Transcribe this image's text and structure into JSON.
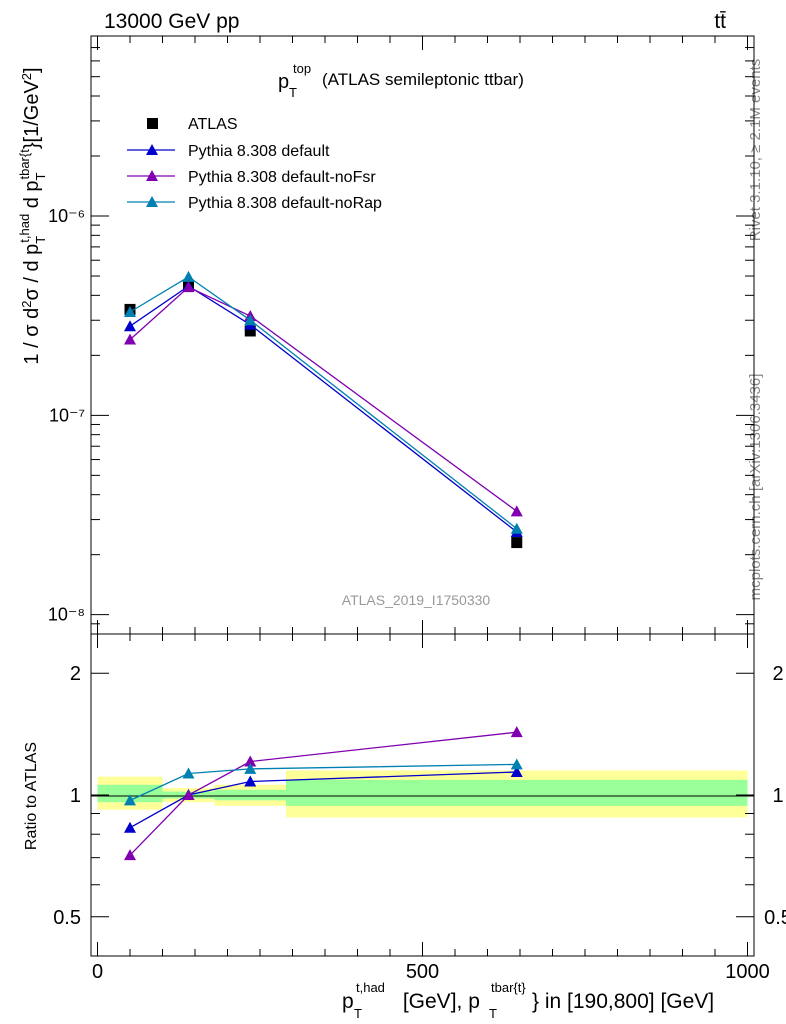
{
  "header": {
    "energy_label": "13000 GeV pp",
    "process_label": "tt̄"
  },
  "side": {
    "rivet_label": "Rivet 3.1.10, ≥ 2.1M events",
    "site_label": "mcplots.cern.ch [arXiv:1306.3436]"
  },
  "colors": {
    "atlas": "#000000",
    "default": "#0000cc",
    "noFsr": "#8000b0",
    "noRap": "#0080b0",
    "band_inner": "#99ff99",
    "band_outer": "#ffff99"
  },
  "chart_data": [
    {
      "type": "line",
      "panel": "main",
      "title": "(ATLAS semileptonic ttbar)",
      "title_var": "p",
      "title_var_sub": "T",
      "title_var_sup": "top",
      "ylabel": "1 / σ d²σ / d p_T^{t,had} d p_T^{tbar{t}} [1/GeV²]",
      "y_scale": "log",
      "ylim": [
        8e-09,
        8e-06
      ],
      "xlim": [
        -10,
        1010
      ],
      "analysis_label": "ATLAS_2019_I1750330",
      "ytick_labels": [
        "10⁻⁸",
        "10⁻⁷",
        "10⁻⁶"
      ],
      "ytick_values": [
        1e-08,
        1e-07,
        1e-06
      ],
      "legend_position": "top-left",
      "x": [
        50,
        140,
        235,
        645
      ],
      "series": [
        {
          "name": "ATLAS",
          "marker": "square",
          "values": [
            3.4e-07,
            4.5e-07,
            2.65e-07,
            2.3e-08
          ]
        },
        {
          "name": "Pythia 8.308 default",
          "marker": "triangle",
          "values": [
            2.8e-07,
            4.45e-07,
            2.85e-07,
            2.6e-08
          ]
        },
        {
          "name": "Pythia 8.308 default-noFsr",
          "marker": "triangle",
          "values": [
            2.4e-07,
            4.4e-07,
            3.15e-07,
            3.3e-08
          ]
        },
        {
          "name": "Pythia 8.308 default-noRap",
          "marker": "triangle",
          "values": [
            3.3e-07,
            4.95e-07,
            3e-07,
            2.7e-08
          ]
        }
      ]
    },
    {
      "type": "line",
      "panel": "ratio",
      "ylabel": "Ratio to ATLAS",
      "y_scale": "log",
      "ylim": [
        0.4,
        2.5
      ],
      "xlim": [
        -10,
        1010
      ],
      "ytick_labels": [
        "0.5",
        "1",
        "2"
      ],
      "ytick_values": [
        0.5,
        1,
        2
      ],
      "xtick_labels": [
        "0",
        "500",
        "1000"
      ],
      "xtick_values": [
        0,
        500,
        1000
      ],
      "xlabel_main": "p",
      "xlabel_sub1": "T",
      "xlabel_sup1": "t,had",
      "xlabel_mid": " [GeV], p",
      "xlabel_sub2": "T",
      "xlabel_sup2": "tbar{t}",
      "xlabel_tail": "} in [190,800] [GeV]",
      "bands": [
        {
          "x_low": 0,
          "x_high": 100,
          "inner": [
            0.96,
            1.06
          ],
          "outer": [
            0.92,
            1.11
          ]
        },
        {
          "x_low": 100,
          "x_high": 180,
          "inner": [
            0.98,
            1.02
          ],
          "outer": [
            0.96,
            1.04
          ]
        },
        {
          "x_low": 180,
          "x_high": 290,
          "inner": [
            0.97,
            1.03
          ],
          "outer": [
            0.94,
            1.06
          ]
        },
        {
          "x_low": 290,
          "x_high": 1000,
          "inner": [
            0.94,
            1.09
          ],
          "outer": [
            0.88,
            1.15
          ]
        }
      ],
      "x": [
        50,
        140,
        235,
        645
      ],
      "series": [
        {
          "name": "Pythia 8.308 default",
          "values": [
            0.83,
            1.0,
            1.08,
            1.14
          ]
        },
        {
          "name": "Pythia 8.308 default-noFsr",
          "values": [
            0.71,
            1.0,
            1.21,
            1.43
          ]
        },
        {
          "name": "Pythia 8.308 default-noRap",
          "values": [
            0.97,
            1.13,
            1.16,
            1.19
          ]
        }
      ]
    }
  ]
}
